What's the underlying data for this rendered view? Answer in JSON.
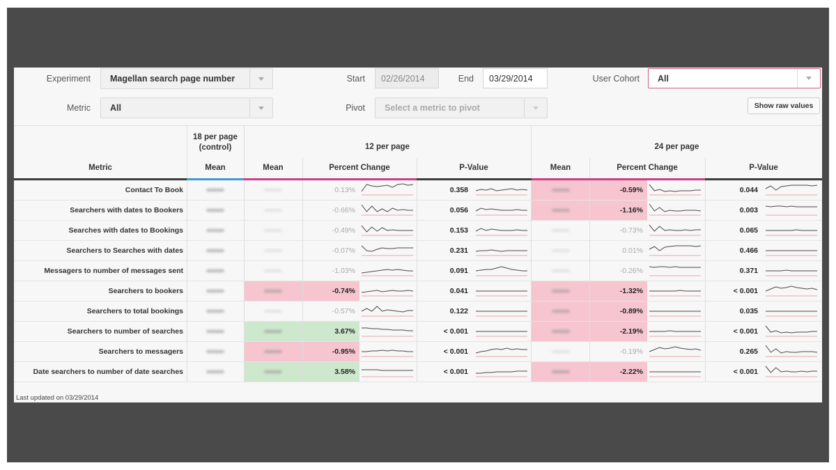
{
  "filters": {
    "experiment_label": "Experiment",
    "experiment_value": "Magellan search page number",
    "start_label": "Start",
    "start_value": "02/26/2014",
    "end_label": "End",
    "end_value": "03/29/2014",
    "cohort_label": "User Cohort",
    "cohort_value": "All",
    "metric_label": "Metric",
    "metric_value": "All",
    "pivot_label": "Pivot",
    "pivot_placeholder": "Select a metric to pivot",
    "raw_button": "Show raw values"
  },
  "table": {
    "metric_header": "Metric",
    "control_header": "18 per page (control)",
    "group_a_header": "12 per page",
    "group_b_header": "24 per page",
    "mean_label": "Mean",
    "pct_label": "Percent Change",
    "pval_label": "P-Value",
    "rows": [
      {
        "metric": "Contact To Book",
        "a_pct": "0.13%",
        "a_pval": "0.358",
        "a_sig": "none",
        "b_pct": "-0.59%",
        "b_pval": "0.044",
        "b_sig": "neg"
      },
      {
        "metric": "Searchers with dates to Bookers",
        "a_pct": "-0.66%",
        "a_pval": "0.056",
        "a_sig": "none",
        "b_pct": "-1.16%",
        "b_pval": "0.003",
        "b_sig": "neg"
      },
      {
        "metric": "Searches with dates to Bookings",
        "a_pct": "-0.49%",
        "a_pval": "0.153",
        "a_sig": "none",
        "b_pct": "-0.73%",
        "b_pval": "0.065",
        "b_sig": "none"
      },
      {
        "metric": "Searchers to Searches with dates",
        "a_pct": "-0.07%",
        "a_pval": "0.231",
        "a_sig": "none",
        "b_pct": "0.01%",
        "b_pval": "0.466",
        "b_sig": "none"
      },
      {
        "metric": "Messagers to number of messages sent",
        "a_pct": "-1.03%",
        "a_pval": "0.091",
        "a_sig": "none",
        "b_pct": "-0.26%",
        "b_pval": "0.371",
        "b_sig": "none"
      },
      {
        "metric": "Searchers to bookers",
        "a_pct": "-0.74%",
        "a_pval": "0.041",
        "a_sig": "neg",
        "b_pct": "-1.32%",
        "b_pval": "< 0.001",
        "b_sig": "neg"
      },
      {
        "metric": "Searchers to total bookings",
        "a_pct": "-0.57%",
        "a_pval": "0.122",
        "a_sig": "none",
        "b_pct": "-0.89%",
        "b_pval": "0.035",
        "b_sig": "neg"
      },
      {
        "metric": "Searchers to number of searches",
        "a_pct": "3.67%",
        "a_pval": "< 0.001",
        "a_sig": "pos",
        "b_pct": "-2.19%",
        "b_pval": "< 0.001",
        "b_sig": "neg"
      },
      {
        "metric": "Searchers to messagers",
        "a_pct": "-0.95%",
        "a_pval": "< 0.001",
        "a_sig": "neg",
        "b_pct": "-0.19%",
        "b_pval": "0.265",
        "b_sig": "none"
      },
      {
        "metric": "Date searchers to number of date searches",
        "a_pct": "3.58%",
        "a_pval": "< 0.001",
        "a_sig": "pos",
        "b_pct": "-2.22%",
        "b_pval": "< 0.001",
        "b_sig": "neg"
      }
    ]
  },
  "footer": "Last updated on 03/29/2014",
  "colors": {
    "negative_bg": "#f6c5d0",
    "positive_bg": "#cde8cd",
    "control_accent": "#3d9ad1",
    "treatment_accent": "#cc3d86",
    "spark_line": "#4a4a4a",
    "spark_baseline": "#e58a96"
  }
}
